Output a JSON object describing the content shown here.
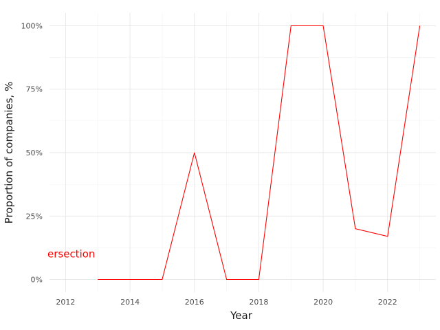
{
  "chart_data": {
    "type": "line",
    "xlabel": "Year",
    "ylabel": "Proportion of companies, %",
    "xlim": [
      2011.5,
      2023.5
    ],
    "ylim": [
      -5,
      105
    ],
    "x_ticks": [
      2012,
      2014,
      2016,
      2018,
      2020,
      2022
    ],
    "y_ticks": [
      0,
      25,
      50,
      75,
      100
    ],
    "y_tick_labels": [
      "0%",
      "25%",
      "50%",
      "75%",
      "100%"
    ],
    "grid": true,
    "legend": "none",
    "series": [
      {
        "color": "#ff0000",
        "x": [
          2013,
          2014,
          2015,
          2016,
          2017,
          2018,
          2019,
          2020,
          2021,
          2022,
          2023
        ],
        "y": [
          0,
          0,
          0,
          50,
          0,
          0,
          100,
          100,
          20,
          17,
          100
        ]
      }
    ],
    "annotations": [
      {
        "text": "ersection",
        "x": 2011.5,
        "y": 10,
        "color": "#ff0000"
      }
    ]
  }
}
